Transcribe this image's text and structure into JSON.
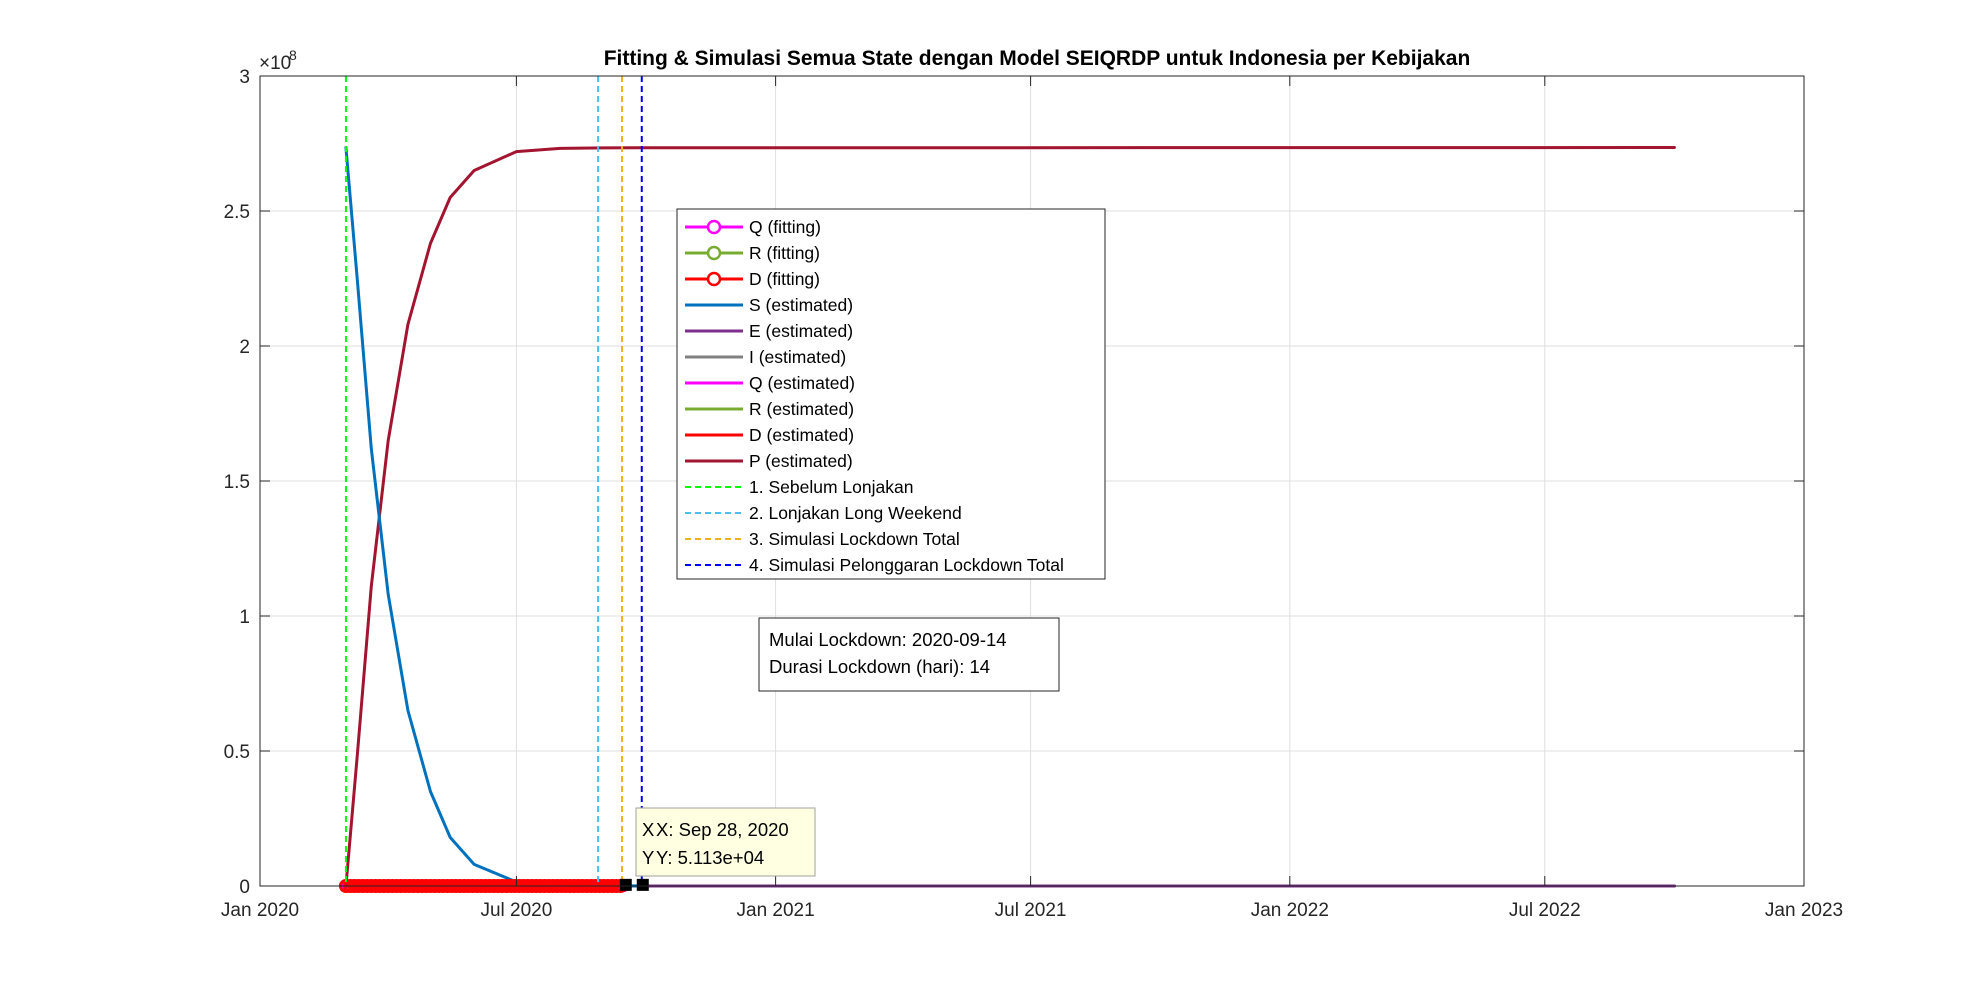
{
  "chart_data": {
    "type": "line",
    "title": "Fitting & Simulasi Semua State dengan Model SEIQRDP untuk Indonesia per Kebijakan",
    "xlabel": "",
    "ylabel": "",
    "x_axis": {
      "type": "date",
      "range": [
        "2020-01-01",
        "2023-01-01"
      ],
      "ticks": [
        {
          "date": "2020-01-01",
          "label": "Jan 2020"
        },
        {
          "date": "2020-07-01",
          "label": "Jul 2020"
        },
        {
          "date": "2021-01-01",
          "label": "Jan 2021"
        },
        {
          "date": "2021-07-01",
          "label": "Jul 2021"
        },
        {
          "date": "2022-01-01",
          "label": "Jan 2022"
        },
        {
          "date": "2022-07-01",
          "label": "Jul 2022"
        },
        {
          "date": "2023-01-01",
          "label": "Jan 2023"
        }
      ]
    },
    "y_axis": {
      "range": [
        0,
        300000000
      ],
      "exponent_label": "×10",
      "exponent_power": "8",
      "ticks": [
        {
          "value": 0,
          "label": "0"
        },
        {
          "value": 50000000,
          "label": "0.5"
        },
        {
          "value": 100000000,
          "label": "1"
        },
        {
          "value": 150000000,
          "label": "1.5"
        },
        {
          "value": 200000000,
          "label": "2"
        },
        {
          "value": 250000000,
          "label": "2.5"
        },
        {
          "value": 300000000,
          "label": "3"
        }
      ]
    },
    "grid": true,
    "legend_position": "inside-center",
    "series": [
      {
        "name": "Q (fitting)",
        "kind": "line-marker",
        "color": "#ff00ff",
        "points": [
          [
            "2020-03-02",
            0
          ],
          [
            "2020-09-15",
            0
          ]
        ]
      },
      {
        "name": "R (fitting)",
        "kind": "line-marker",
        "color": "#77ac30",
        "points": [
          [
            "2020-03-02",
            0
          ],
          [
            "2020-09-15",
            0
          ]
        ]
      },
      {
        "name": "D (fitting)",
        "kind": "line-marker",
        "color": "#ff0000",
        "points": [
          [
            "2020-03-02",
            0
          ],
          [
            "2020-09-15",
            0
          ]
        ]
      },
      {
        "name": "S (estimated)",
        "kind": "line",
        "color": "#0072bd",
        "points": [
          [
            "2020-03-02",
            273500000
          ],
          [
            "2020-03-10",
            225000000
          ],
          [
            "2020-03-20",
            162000000
          ],
          [
            "2020-04-01",
            108000000
          ],
          [
            "2020-04-15",
            65000000
          ],
          [
            "2020-05-01",
            35000000
          ],
          [
            "2020-05-15",
            18000000
          ],
          [
            "2020-06-01",
            8000000
          ],
          [
            "2020-07-01",
            1500000
          ],
          [
            "2020-08-01",
            300000
          ],
          [
            "2020-09-01",
            100000
          ],
          [
            "2020-09-28",
            51130
          ]
        ]
      },
      {
        "name": "E (estimated)",
        "kind": "line",
        "color": "#7e2f8e",
        "points": [
          [
            "2020-03-02",
            0
          ],
          [
            "2022-10-01",
            0
          ]
        ]
      },
      {
        "name": "I (estimated)",
        "kind": "line",
        "color": "#808080",
        "points": [
          [
            "2020-03-02",
            0
          ],
          [
            "2022-10-01",
            0
          ]
        ]
      },
      {
        "name": "Q (estimated)",
        "kind": "line",
        "color": "#ff00ff",
        "points": [
          [
            "2020-03-02",
            0
          ],
          [
            "2022-10-01",
            0
          ]
        ]
      },
      {
        "name": "R (estimated)",
        "kind": "line",
        "color": "#77ac30",
        "points": [
          [
            "2020-03-02",
            0
          ],
          [
            "2022-10-01",
            0
          ]
        ]
      },
      {
        "name": "D (estimated)",
        "kind": "line",
        "color": "#ff0000",
        "points": [
          [
            "2020-03-02",
            0
          ],
          [
            "2022-10-01",
            0
          ]
        ]
      },
      {
        "name": "P (estimated)",
        "kind": "line",
        "color": "#a2142f",
        "points": [
          [
            "2020-03-02",
            0
          ],
          [
            "2020-03-10",
            48000000
          ],
          [
            "2020-03-20",
            111000000
          ],
          [
            "2020-04-01",
            165000000
          ],
          [
            "2020-04-15",
            208000000
          ],
          [
            "2020-05-01",
            238000000
          ],
          [
            "2020-05-15",
            255000000
          ],
          [
            "2020-06-01",
            265000000
          ],
          [
            "2020-07-01",
            272000000
          ],
          [
            "2020-08-01",
            273200000
          ],
          [
            "2020-09-01",
            273400000
          ],
          [
            "2022-10-01",
            273500000
          ]
        ]
      },
      {
        "name": "1. Sebelum Lonjakan",
        "kind": "vline",
        "color": "#00ff00",
        "date": "2020-03-02"
      },
      {
        "name": "2. Lonjakan Long Weekend",
        "kind": "vline",
        "color": "#4dbeee",
        "date": "2020-08-28"
      },
      {
        "name": "3. Simulasi Lockdown Total",
        "kind": "vline",
        "color": "#edb120",
        "date": "2020-09-14"
      },
      {
        "name": "4. Simulasi Pelonggaran Lockdown Total",
        "kind": "vline",
        "color": "#0000ff",
        "date": "2020-09-28"
      }
    ],
    "annotation": {
      "lines": [
        "Mulai Lockdown: 2020-09-14",
        "Durasi Lockdown (hari): 14"
      ]
    },
    "datatip": {
      "date": "2020-09-28",
      "value": 51130,
      "x_text": "X: Sep 28, 2020",
      "y_text": "Y: 5.113e+04",
      "clipped_prefix_x": "X",
      "clipped_prefix_y": "Y"
    }
  }
}
